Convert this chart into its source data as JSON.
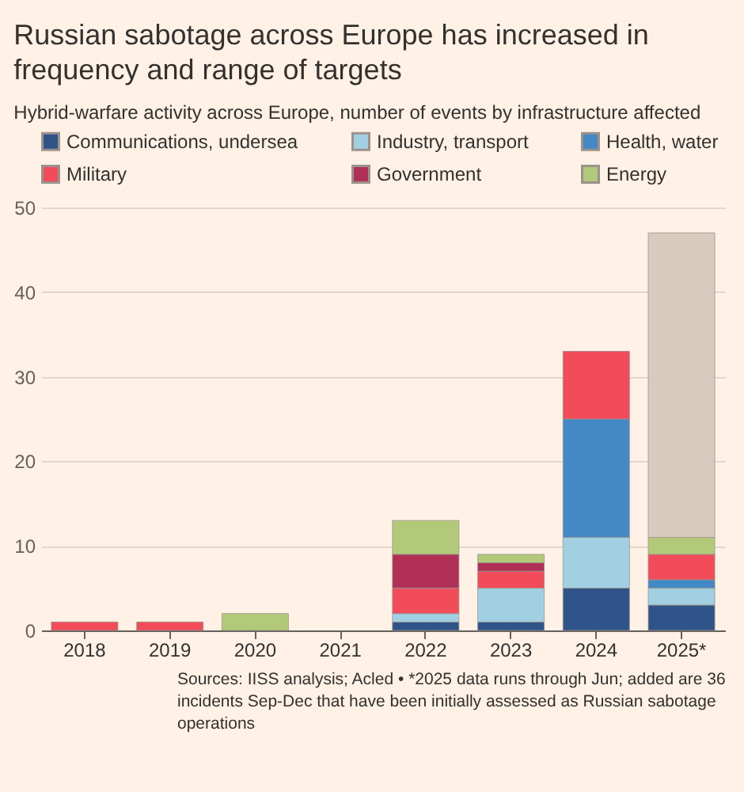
{
  "chart_data": {
    "type": "bar",
    "title": "Russian sabotage across Europe has increased in frequency and range of targets",
    "subtitle": "Hybrid-warfare activity across Europe, number of events by infrastructure affected",
    "categories": [
      "2018",
      "2019",
      "2020",
      "2021",
      "2022",
      "2023",
      "2024",
      "2025*"
    ],
    "stacked": true,
    "series": [
      {
        "name": "Communications, undersea",
        "color": "#2e5489",
        "values": [
          0,
          0,
          0,
          0,
          1,
          1,
          5,
          3
        ]
      },
      {
        "name": "Industry, transport",
        "color": "#a2d0e3",
        "values": [
          0,
          0,
          0,
          0,
          1,
          4,
          6,
          2
        ]
      },
      {
        "name": "Health, water",
        "color": "#4389c5",
        "values": [
          0,
          0,
          0,
          0,
          0,
          0,
          14,
          1
        ]
      },
      {
        "name": "Military",
        "color": "#f24c5a",
        "values": [
          1,
          1,
          0,
          0,
          3,
          2,
          8,
          3
        ]
      },
      {
        "name": "Government",
        "color": "#b03058",
        "values": [
          0,
          0,
          0,
          0,
          4,
          1,
          0,
          0
        ]
      },
      {
        "name": "Energy",
        "color": "#b3c97a",
        "values": [
          0,
          0,
          2,
          0,
          4,
          1,
          0,
          2
        ]
      },
      {
        "color": "#d8cbbe",
        "values": [
          0,
          0,
          0,
          0,
          0,
          0,
          0,
          36
        ]
      }
    ],
    "ylim": [
      0,
      50
    ],
    "yticks": [
      0,
      10,
      20,
      30,
      40,
      50
    ],
    "grid": "y",
    "legend": "top",
    "annotations": [
      "Sources: IISS analysis; Acled • *2025 data runs through Jun; added are 36 incidents Sep-Dec that have been initially assessed as Russian sabotage operations"
    ]
  }
}
